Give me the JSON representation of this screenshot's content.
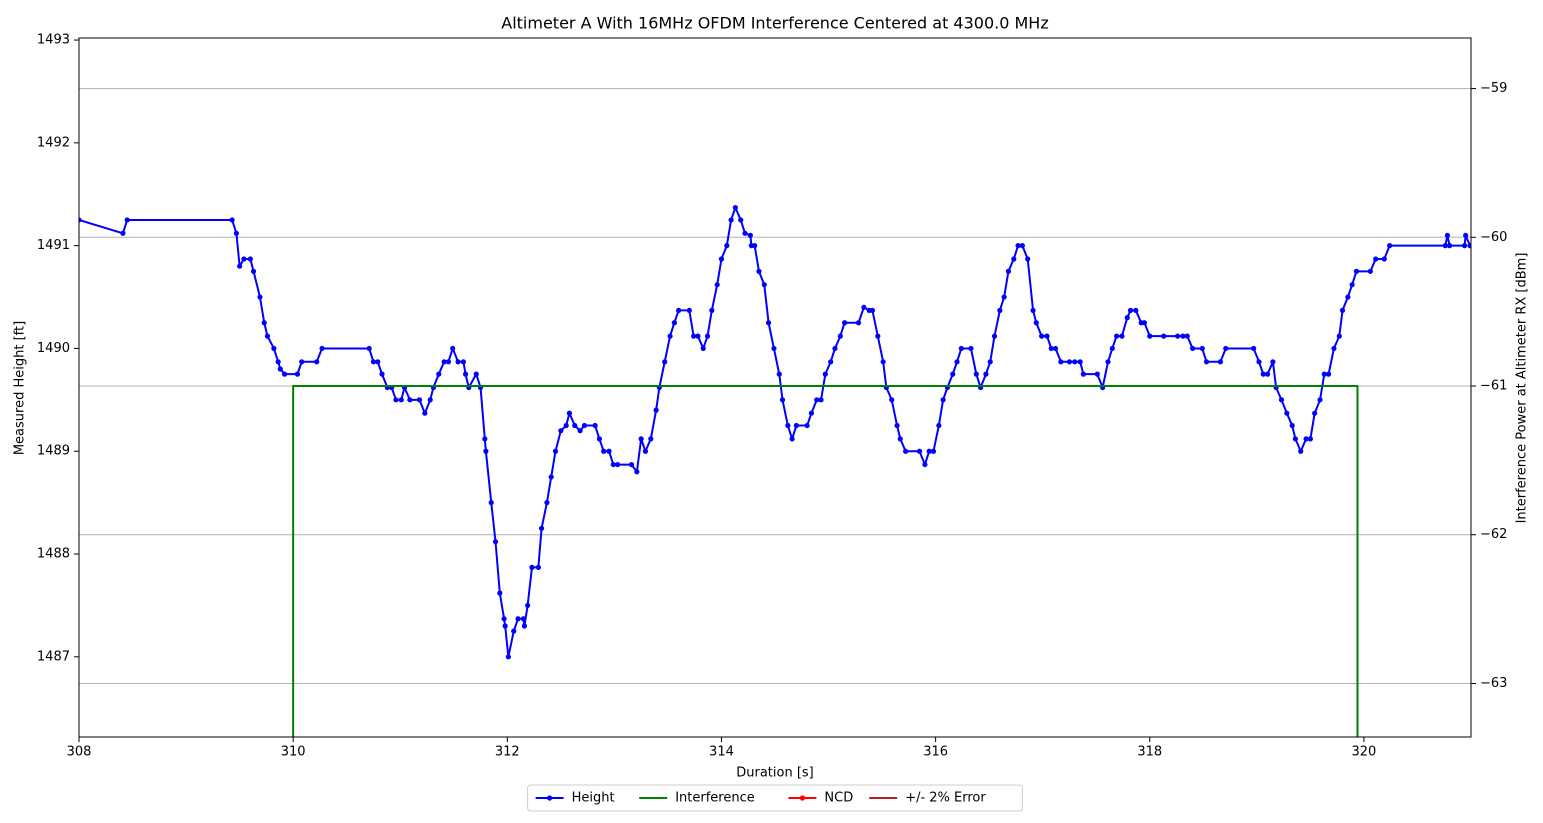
{
  "chart_data": {
    "type": "line",
    "title": "Altimeter A With 16MHz OFDM Interference Centered at 4300.0 MHz",
    "x_label": "Duration [s]",
    "y_label": "Measured Height [ft]",
    "y2_label": "Interference Power at Altimeter RX [dBm]",
    "y_label_color": "#0000ff",
    "y2_label_color": "#008000",
    "xlim": [
      308,
      321
    ],
    "xticks": [
      308,
      310,
      312,
      314,
      316,
      318,
      320
    ],
    "ylim": [
      1486.22,
      1493.02
    ],
    "yticks": [
      1487,
      1488,
      1489,
      1490,
      1491,
      1492,
      1493
    ],
    "y2lim": [
      -63.36,
      -58.66
    ],
    "y2ticks": [
      {
        "value": -63,
        "label": "−63"
      },
      {
        "value": -62,
        "label": "−62"
      },
      {
        "value": -61,
        "label": "−61"
      },
      {
        "value": -60,
        "label": "−60"
      },
      {
        "value": -59,
        "label": "−59"
      }
    ],
    "grid": "y2",
    "legend": "lower center outside",
    "series": [
      {
        "name": "Height",
        "color": "#0000ff",
        "marker": "o",
        "axis": "y",
        "x": [
          308.0,
          308.41,
          308.45,
          309.43,
          309.47,
          309.5,
          309.54,
          309.6,
          309.63,
          309.69,
          309.73,
          309.76,
          309.82,
          309.86,
          309.88,
          309.92,
          310.04,
          310.08,
          310.22,
          310.27,
          310.71,
          310.75,
          310.79,
          310.83,
          310.88,
          310.92,
          310.96,
          311.01,
          311.04,
          311.09,
          311.18,
          311.23,
          311.28,
          311.31,
          311.36,
          311.41,
          311.45,
          311.49,
          311.54,
          311.59,
          311.61,
          311.64,
          311.71,
          311.75,
          311.79,
          311.8,
          311.85,
          311.89,
          311.93,
          311.97,
          311.98,
          312.01,
          312.06,
          312.1,
          312.15,
          312.16,
          312.19,
          312.23,
          312.29,
          312.32,
          312.37,
          312.41,
          312.45,
          312.5,
          312.55,
          312.58,
          312.63,
          312.68,
          312.72,
          312.82,
          312.86,
          312.9,
          312.95,
          312.99,
          313.03,
          313.16,
          313.21,
          313.25,
          313.29,
          313.34,
          313.39,
          313.42,
          313.47,
          313.52,
          313.56,
          313.6,
          313.7,
          313.74,
          313.78,
          313.83,
          313.87,
          313.91,
          313.96,
          314.0,
          314.05,
          314.09,
          314.13,
          314.18,
          314.22,
          314.27,
          314.28,
          314.31,
          314.35,
          314.4,
          314.44,
          314.49,
          314.54,
          314.57,
          314.62,
          314.66,
          314.7,
          314.8,
          314.84,
          314.89,
          314.93,
          314.97,
          315.02,
          315.06,
          315.11,
          315.15,
          315.28,
          315.33,
          315.38,
          315.41,
          315.46,
          315.51,
          315.54,
          315.59,
          315.64,
          315.67,
          315.72,
          315.85,
          315.9,
          315.94,
          315.98,
          316.03,
          316.07,
          316.11,
          316.16,
          316.2,
          316.24,
          316.33,
          316.38,
          316.42,
          316.47,
          316.51,
          316.55,
          316.6,
          316.64,
          316.68,
          316.73,
          316.77,
          316.81,
          316.86,
          316.91,
          316.94,
          316.99,
          317.04,
          317.08,
          317.12,
          317.17,
          317.25,
          317.3,
          317.35,
          317.38,
          317.51,
          317.56,
          317.61,
          317.65,
          317.69,
          317.74,
          317.79,
          317.82,
          317.87,
          317.92,
          317.95,
          318.0,
          318.13,
          318.26,
          318.31,
          318.35,
          318.4,
          318.49,
          318.53,
          318.66,
          318.71,
          318.97,
          319.02,
          319.06,
          319.1,
          319.15,
          319.18,
          319.23,
          319.28,
          319.33,
          319.36,
          319.41,
          319.46,
          319.5,
          319.54,
          319.59,
          319.63,
          319.67,
          319.72,
          319.77,
          319.8,
          319.85,
          319.89,
          319.93,
          320.06,
          320.11,
          320.19,
          320.24,
          320.76,
          320.78,
          320.8,
          320.94,
          320.95,
          320.99
        ],
        "values": [
          1491.25,
          1491.12,
          1491.25,
          1491.25,
          1491.12,
          1490.8,
          1490.87,
          1490.87,
          1490.75,
          1490.5,
          1490.25,
          1490.12,
          1490.0,
          1489.87,
          1489.8,
          1489.75,
          1489.75,
          1489.87,
          1489.87,
          1490.0,
          1490.0,
          1489.87,
          1489.87,
          1489.75,
          1489.62,
          1489.62,
          1489.5,
          1489.5,
          1489.62,
          1489.5,
          1489.5,
          1489.37,
          1489.5,
          1489.62,
          1489.75,
          1489.87,
          1489.87,
          1490.0,
          1489.87,
          1489.87,
          1489.75,
          1489.62,
          1489.75,
          1489.62,
          1489.12,
          1489.0,
          1488.5,
          1488.12,
          1487.62,
          1487.37,
          1487.3,
          1487.0,
          1487.25,
          1487.37,
          1487.37,
          1487.3,
          1487.5,
          1487.87,
          1487.87,
          1488.25,
          1488.5,
          1488.75,
          1489.0,
          1489.2,
          1489.25,
          1489.37,
          1489.25,
          1489.2,
          1489.25,
          1489.25,
          1489.12,
          1489.0,
          1489.0,
          1488.87,
          1488.87,
          1488.87,
          1488.8,
          1489.12,
          1489.0,
          1489.12,
          1489.4,
          1489.62,
          1489.87,
          1490.12,
          1490.25,
          1490.37,
          1490.37,
          1490.12,
          1490.12,
          1490.0,
          1490.12,
          1490.37,
          1490.62,
          1490.87,
          1491.0,
          1491.25,
          1491.37,
          1491.25,
          1491.12,
          1491.1,
          1491.0,
          1491.0,
          1490.75,
          1490.62,
          1490.25,
          1490.0,
          1489.75,
          1489.5,
          1489.25,
          1489.12,
          1489.25,
          1489.25,
          1489.37,
          1489.5,
          1489.5,
          1489.75,
          1489.87,
          1490.0,
          1490.12,
          1490.25,
          1490.25,
          1490.4,
          1490.37,
          1490.37,
          1490.12,
          1489.87,
          1489.62,
          1489.5,
          1489.25,
          1489.12,
          1489.0,
          1489.0,
          1488.87,
          1489.0,
          1489.0,
          1489.25,
          1489.5,
          1489.62,
          1489.75,
          1489.87,
          1490.0,
          1490.0,
          1489.75,
          1489.62,
          1489.75,
          1489.87,
          1490.12,
          1490.37,
          1490.5,
          1490.75,
          1490.87,
          1491.0,
          1491.0,
          1490.87,
          1490.37,
          1490.25,
          1490.12,
          1490.12,
          1490.0,
          1490.0,
          1489.87,
          1489.87,
          1489.87,
          1489.87,
          1489.75,
          1489.75,
          1489.62,
          1489.87,
          1490.0,
          1490.12,
          1490.12,
          1490.3,
          1490.37,
          1490.37,
          1490.25,
          1490.25,
          1490.12,
          1490.12,
          1490.12,
          1490.12,
          1490.12,
          1490.0,
          1490.0,
          1489.87,
          1489.87,
          1490.0,
          1490.0,
          1489.87,
          1489.75,
          1489.75,
          1489.87,
          1489.62,
          1489.5,
          1489.37,
          1489.25,
          1489.12,
          1489.0,
          1489.12,
          1489.12,
          1489.37,
          1489.5,
          1489.75,
          1489.75,
          1490.0,
          1490.12,
          1490.37,
          1490.5,
          1490.62,
          1490.75,
          1490.75,
          1490.87,
          1490.87,
          1491.0,
          1491.0,
          1491.1,
          1491.0,
          1491.0,
          1491.1,
          1491.0
        ]
      },
      {
        "name": "Interference",
        "color": "#008000",
        "axis": "y2",
        "x": [
          310,
          310,
          319.94,
          319.94
        ],
        "values": [
          -63.36,
          -61,
          -61,
          -63.36
        ]
      },
      {
        "name": "NCD",
        "color": "#ff0000",
        "marker": "o",
        "axis": "y",
        "x": [],
        "values": []
      },
      {
        "name": "+/- 2% Error",
        "color": "#b22222",
        "axis": "y",
        "x": [],
        "values": []
      }
    ]
  }
}
